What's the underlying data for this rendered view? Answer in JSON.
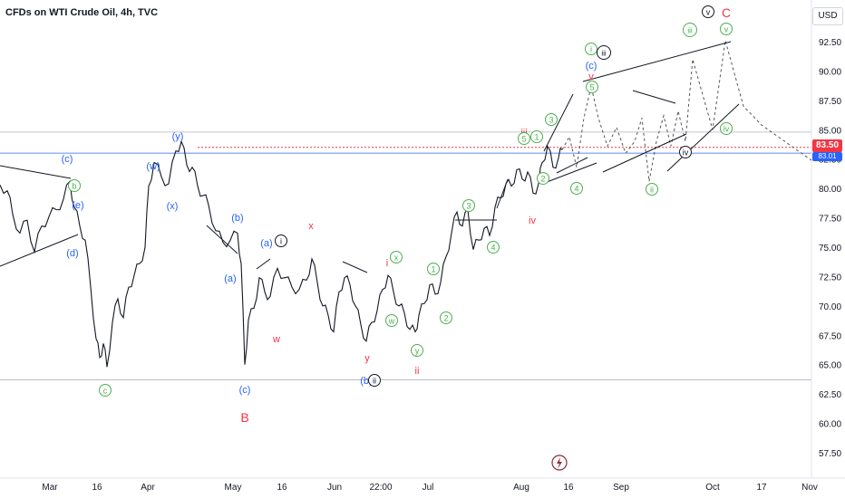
{
  "header": {
    "title": "CFDs on WTI Crude Oil, 4h, TVC",
    "currency": "USD"
  },
  "price_tag": {
    "value": "83.50",
    "secondary": "83.01"
  },
  "colors": {
    "blue": "#2962ff",
    "green": "#4caf50",
    "red": "#f23645",
    "black": "#131722",
    "grid": "#c8cbd3"
  },
  "chart_data": {
    "type": "line",
    "title": "CFDs on WTI Crude Oil, 4h, TVC",
    "x_ticks": [
      "Mar",
      "16",
      "Apr",
      "May",
      "16",
      "Jun",
      "22:00",
      "Jul",
      "Aug",
      "16",
      "Sep",
      "Oct",
      "17",
      "Nov"
    ],
    "y_ticks": [
      "92.50",
      "90.00",
      "87.50",
      "85.00",
      "82.50",
      "80.00",
      "77.50",
      "75.00",
      "72.50",
      "70.00",
      "67.50",
      "65.00",
      "62.50",
      "60.00",
      "57.50"
    ],
    "ylim": [
      55.5,
      94.5
    ],
    "current_price": 83.5,
    "reference_lines": [
      84.8,
      83.01,
      63.7
    ],
    "series": [
      {
        "values": [
          [
            0,
            80.3
          ],
          [
            8,
            79.8
          ],
          [
            14,
            77.8
          ],
          [
            22,
            76.2
          ],
          [
            30,
            77.3
          ],
          [
            38,
            74.6
          ],
          [
            46,
            76.8
          ],
          [
            54,
            77.6
          ],
          [
            62,
            78.2
          ],
          [
            70,
            79.1
          ],
          [
            77,
            80.6
          ],
          [
            82,
            78.4
          ],
          [
            88,
            76.8
          ],
          [
            94,
            75.6
          ],
          [
            100,
            71.6
          ],
          [
            106,
            67.2
          ],
          [
            110,
            65.6
          ],
          [
            114,
            66.8
          ],
          [
            118,
            64.8
          ],
          [
            124,
            68.6
          ],
          [
            130,
            70.6
          ],
          [
            136,
            69.0
          ],
          [
            142,
            71.6
          ],
          [
            148,
            72.6
          ],
          [
            154,
            73.6
          ],
          [
            160,
            75.0
          ],
          [
            164,
            80.2
          ],
          [
            170,
            82.2
          ],
          [
            178,
            81.0
          ],
          [
            186,
            80.4
          ],
          [
            194,
            83.2
          ],
          [
            200,
            84.0
          ],
          [
            206,
            82.0
          ],
          [
            212,
            81.8
          ],
          [
            218,
            80.2
          ],
          [
            224,
            79.4
          ],
          [
            230,
            78.6
          ],
          [
            238,
            76.4
          ],
          [
            246,
            75.4
          ],
          [
            254,
            75.6
          ],
          [
            262,
            76.2
          ],
          [
            266,
            73.6
          ],
          [
            270,
            65.0
          ],
          [
            274,
            68.8
          ],
          [
            280,
            69.8
          ],
          [
            286,
            72.4
          ],
          [
            292,
            71.2
          ],
          [
            298,
            70.8
          ],
          [
            306,
            73.2
          ],
          [
            314,
            72.4
          ],
          [
            322,
            71.6
          ],
          [
            330,
            71.4
          ],
          [
            338,
            72.2
          ],
          [
            344,
            74.0
          ],
          [
            350,
            72.0
          ],
          [
            356,
            70.0
          ],
          [
            362,
            69.2
          ],
          [
            368,
            67.8
          ],
          [
            374,
            71.2
          ],
          [
            380,
            72.4
          ],
          [
            386,
            71.8
          ],
          [
            392,
            70.0
          ],
          [
            398,
            68.4
          ],
          [
            404,
            67.0
          ],
          [
            410,
            68.6
          ],
          [
            416,
            69.6
          ],
          [
            422,
            71.4
          ],
          [
            428,
            72.6
          ],
          [
            434,
            71.2
          ],
          [
            440,
            70.0
          ],
          [
            446,
            69.4
          ],
          [
            452,
            68.0
          ],
          [
            458,
            67.8
          ],
          [
            462,
            69.2
          ],
          [
            468,
            70.2
          ],
          [
            474,
            71.8
          ],
          [
            480,
            71.0
          ],
          [
            486,
            72.0
          ],
          [
            492,
            74.2
          ],
          [
            498,
            76.2
          ],
          [
            504,
            78.0
          ],
          [
            510,
            76.8
          ],
          [
            516,
            78.2
          ],
          [
            522,
            74.8
          ],
          [
            528,
            75.6
          ],
          [
            534,
            76.6
          ],
          [
            540,
            76.0
          ],
          [
            546,
            78.4
          ],
          [
            552,
            79.2
          ],
          [
            558,
            80.4
          ],
          [
            564,
            80.2
          ],
          [
            570,
            81.6
          ],
          [
            576,
            80.8
          ],
          [
            582,
            81.4
          ],
          [
            588,
            79.6
          ],
          [
            594,
            80.4
          ],
          [
            598,
            82.2
          ],
          [
            604,
            83.6
          ],
          [
            610,
            81.8
          ],
          [
            616,
            82.6
          ],
          [
            620,
            83.3
          ]
        ]
      }
    ],
    "projection": [
      [
        620,
        83.3
      ],
      [
        628,
        84.4
      ],
      [
        636,
        81.8
      ],
      [
        644,
        86.0
      ],
      [
        652,
        88.7
      ],
      [
        660,
        86.0
      ],
      [
        670,
        83.6
      ],
      [
        680,
        85.2
      ],
      [
        690,
        83.0
      ],
      [
        700,
        84.0
      ],
      [
        708,
        86.0
      ],
      [
        716,
        80.6
      ],
      [
        724,
        84.0
      ],
      [
        732,
        86.2
      ],
      [
        740,
        83.6
      ],
      [
        748,
        86.6
      ],
      [
        756,
        84.0
      ],
      [
        764,
        91.0
      ],
      [
        772,
        88.8
      ],
      [
        786,
        85.0
      ],
      [
        800,
        92.6
      ],
      [
        820,
        87.0
      ],
      [
        840,
        85.4
      ],
      [
        895,
        82.4
      ]
    ]
  },
  "labels": [
    {
      "text": "(c)",
      "color": "blue"
    },
    {
      "text": "b",
      "color": "green"
    },
    {
      "text": "(e)",
      "color": "blue"
    },
    {
      "text": "(d)",
      "color": "blue"
    },
    {
      "text": "c",
      "color": "green"
    },
    {
      "text": "(w)",
      "color": "blue"
    },
    {
      "text": "(y)",
      "color": "blue"
    },
    {
      "text": "(x)",
      "color": "blue"
    },
    {
      "text": "(b)",
      "color": "blue"
    },
    {
      "text": "(a)",
      "color": "blue"
    },
    {
      "text": "(c)",
      "color": "blue"
    },
    {
      "text": "B",
      "color": "red"
    },
    {
      "text": "(a)",
      "color": "blue"
    },
    {
      "text": "i",
      "color": "black"
    },
    {
      "text": "w",
      "color": "red"
    },
    {
      "text": "x",
      "color": "red"
    },
    {
      "text": "y",
      "color": "red"
    },
    {
      "text": "(b)",
      "color": "blue"
    },
    {
      "text": "ii",
      "color": "black"
    },
    {
      "text": "i",
      "color": "red"
    },
    {
      "text": "x",
      "color": "green"
    },
    {
      "text": "w",
      "color": "green"
    },
    {
      "text": "y",
      "color": "green"
    },
    {
      "text": "ii",
      "color": "red"
    },
    {
      "text": "1",
      "color": "green"
    },
    {
      "text": "2",
      "color": "green"
    },
    {
      "text": "3",
      "color": "green"
    },
    {
      "text": "4",
      "color": "green"
    },
    {
      "text": "iii",
      "color": "red"
    },
    {
      "text": "5",
      "color": "green"
    },
    {
      "text": "1",
      "color": "green"
    },
    {
      "text": "iv",
      "color": "red"
    },
    {
      "text": "2",
      "color": "green"
    },
    {
      "text": "3",
      "color": "green"
    },
    {
      "text": "4",
      "color": "green"
    },
    {
      "text": "v",
      "color": "red"
    },
    {
      "text": "5",
      "color": "green"
    },
    {
      "text": "i",
      "color": "green"
    },
    {
      "text": "iii",
      "color": "black"
    },
    {
      "text": "(c)",
      "color": "blue"
    },
    {
      "text": "ii",
      "color": "green"
    },
    {
      "text": "iii",
      "color": "green"
    },
    {
      "text": "iv",
      "color": "black"
    },
    {
      "text": "iv",
      "color": "green"
    },
    {
      "text": "v",
      "color": "green"
    },
    {
      "text": "v",
      "color": "black"
    },
    {
      "text": "C",
      "color": "red"
    }
  ]
}
